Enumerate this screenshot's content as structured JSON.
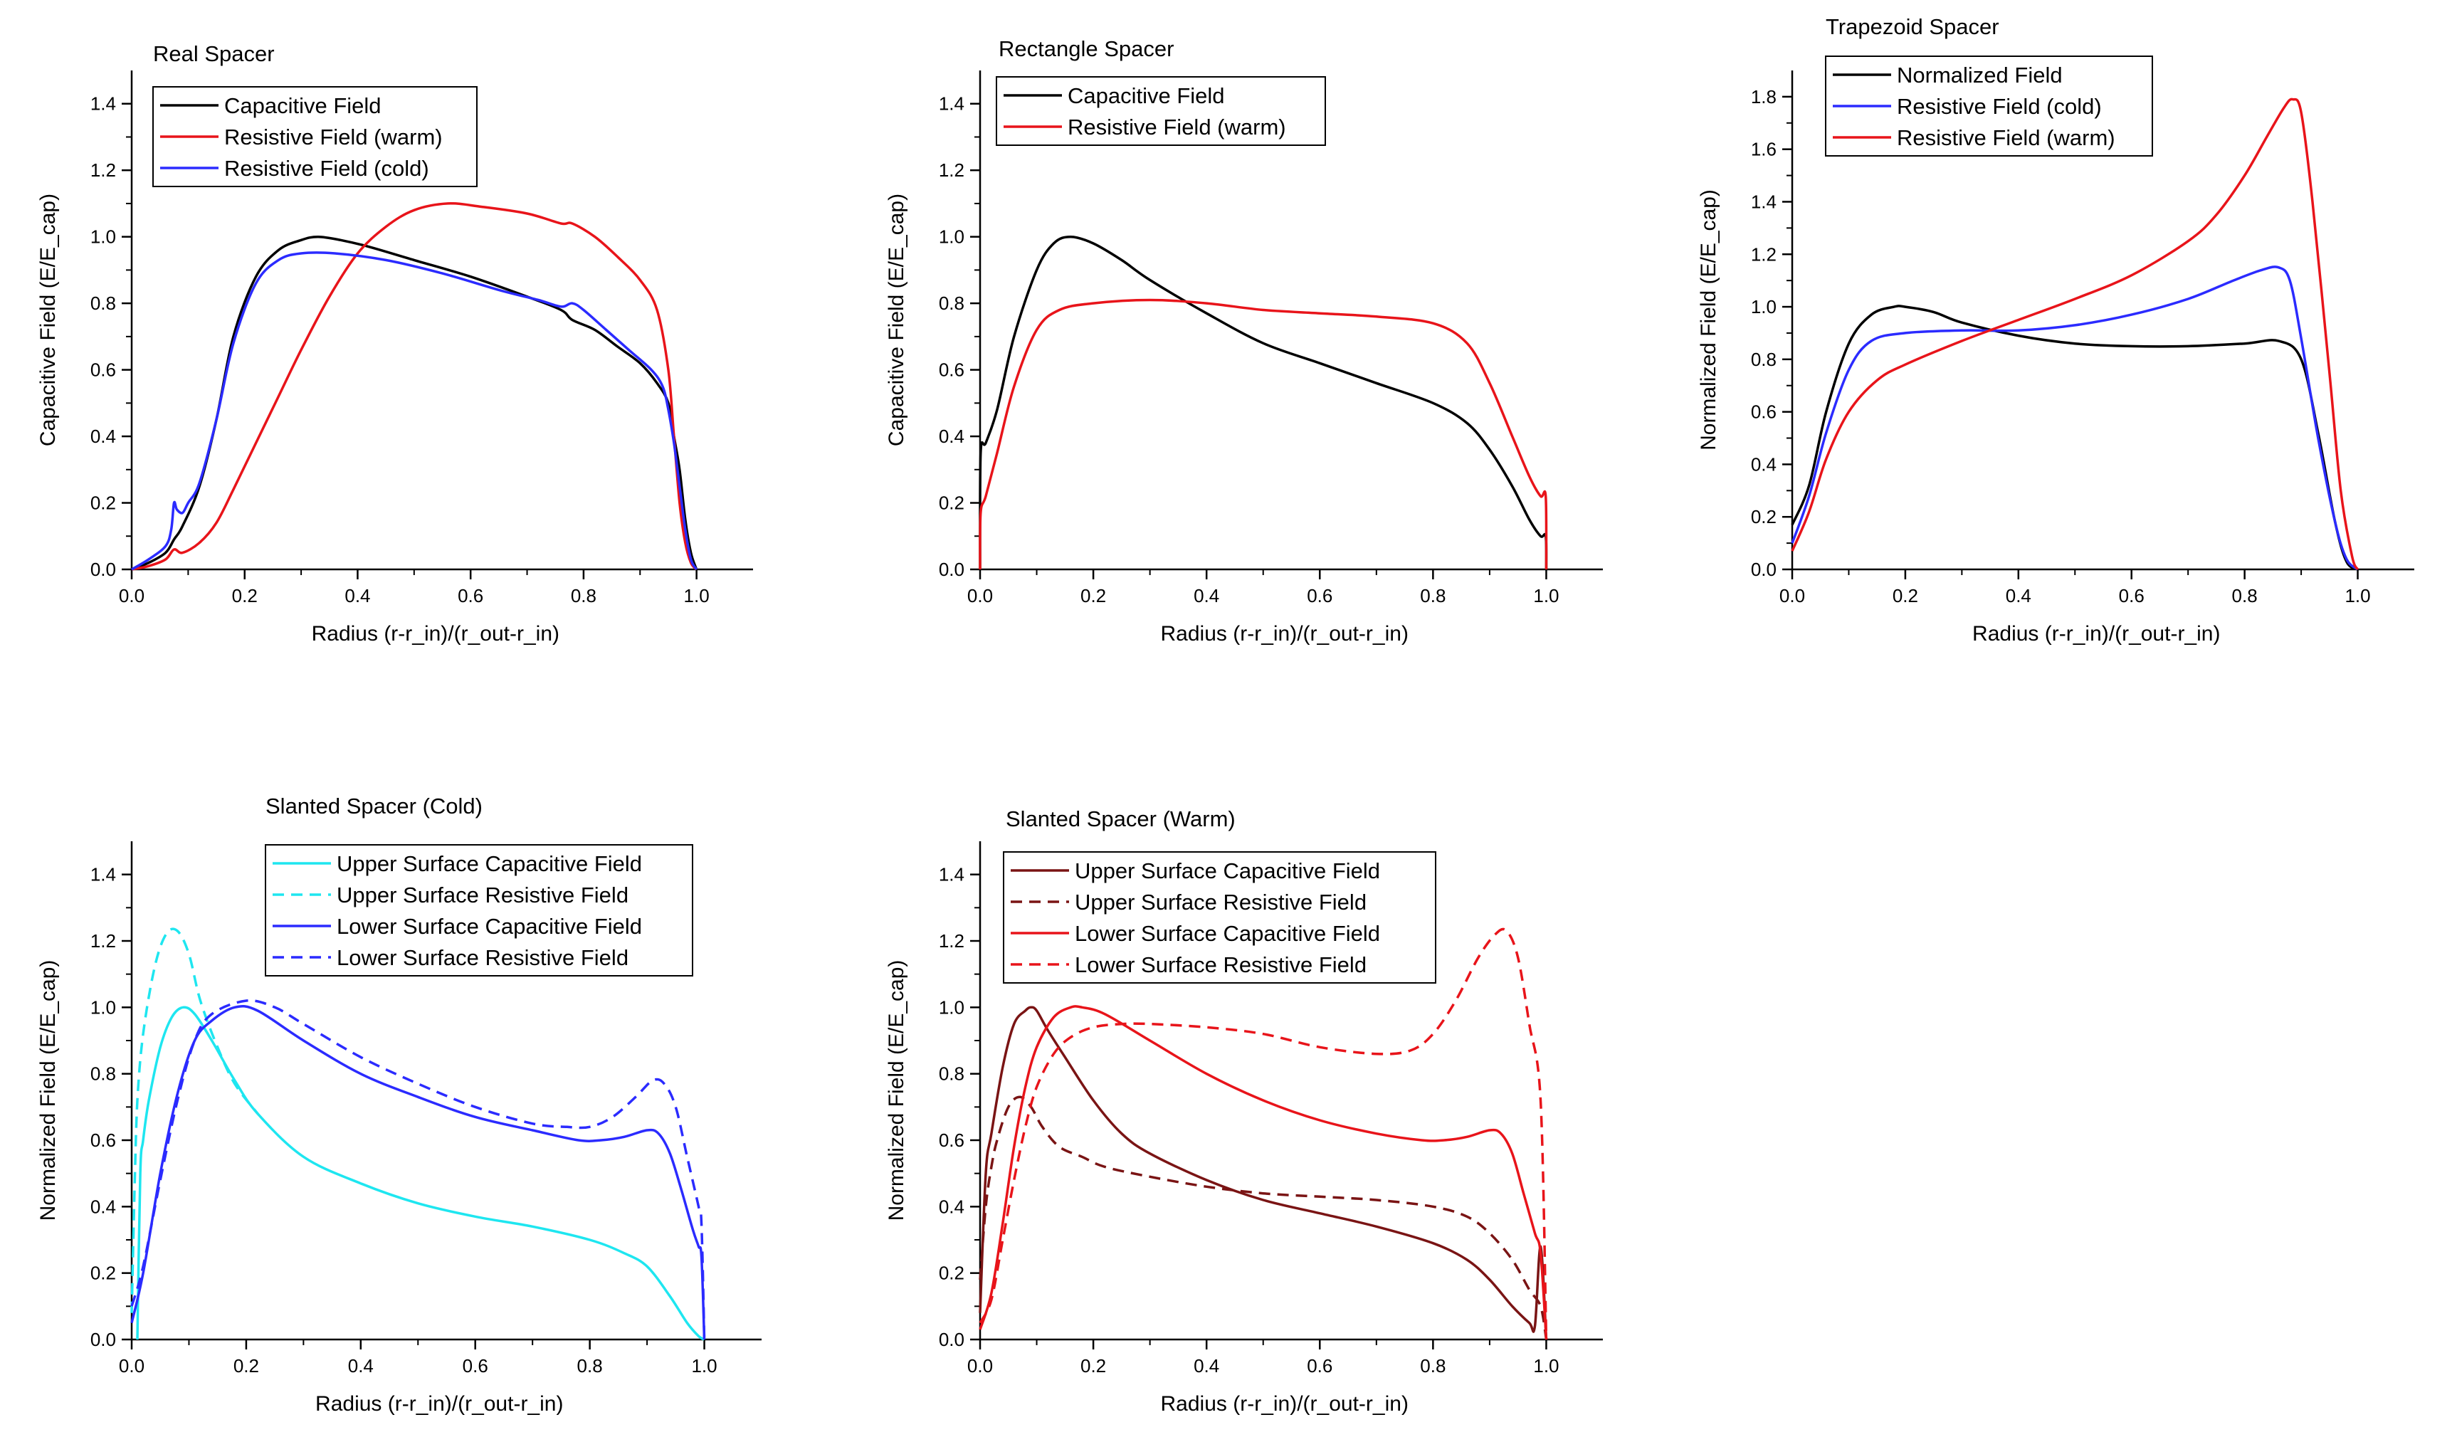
{
  "chart_data": [
    {
      "type": "line",
      "title": "Real Spacer",
      "xlabel": "Radius (r-r_in)/(r_out-r_in)",
      "ylabel": "Capacitive Field (E/E_cap)",
      "xlim": [
        0,
        1.1
      ],
      "ylim": [
        0,
        1.5
      ],
      "xticks": [
        "0.0",
        "0.2",
        "0.4",
        "0.6",
        "0.8",
        "1.0"
      ],
      "yticks": [
        "0.0",
        "0.2",
        "0.4",
        "0.6",
        "0.8",
        "1.0",
        "1.2",
        "1.4"
      ],
      "grid": false,
      "legend_position": "top-left",
      "series": [
        {
          "name": "Capacitive Field",
          "color": "#000000",
          "dash": "solid",
          "x": [
            0,
            0.03,
            0.06,
            0.075,
            0.09,
            0.12,
            0.15,
            0.18,
            0.22,
            0.26,
            0.3,
            0.33,
            0.37,
            0.42,
            0.5,
            0.6,
            0.7,
            0.76,
            0.78,
            0.82,
            0.86,
            0.9,
            0.93,
            0.95,
            0.96,
            0.97,
            0.98,
            0.99,
            1.0
          ],
          "y": [
            0,
            0.02,
            0.05,
            0.09,
            0.13,
            0.25,
            0.45,
            0.7,
            0.88,
            0.96,
            0.99,
            1.0,
            0.99,
            0.97,
            0.93,
            0.88,
            0.82,
            0.78,
            0.75,
            0.72,
            0.67,
            0.62,
            0.56,
            0.5,
            0.4,
            0.3,
            0.15,
            0.05,
            0
          ]
        },
        {
          "name": "Resistive Field (warm)",
          "color": "#e8141a",
          "dash": "solid",
          "x": [
            0,
            0.03,
            0.06,
            0.075,
            0.09,
            0.12,
            0.15,
            0.18,
            0.22,
            0.26,
            0.3,
            0.35,
            0.4,
            0.45,
            0.5,
            0.56,
            0.62,
            0.7,
            0.76,
            0.78,
            0.82,
            0.86,
            0.9,
            0.93,
            0.95,
            0.96,
            0.97,
            0.98,
            0.99,
            1.0
          ],
          "y": [
            0,
            0.01,
            0.03,
            0.06,
            0.05,
            0.08,
            0.14,
            0.24,
            0.38,
            0.52,
            0.66,
            0.82,
            0.95,
            1.03,
            1.08,
            1.1,
            1.09,
            1.07,
            1.04,
            1.04,
            1.0,
            0.94,
            0.87,
            0.78,
            0.6,
            0.4,
            0.2,
            0.08,
            0.02,
            0
          ]
        },
        {
          "name": "Resistive Field (cold)",
          "color": "#2b2bff",
          "dash": "solid",
          "x": [
            0,
            0.03,
            0.06,
            0.07,
            0.075,
            0.08,
            0.09,
            0.1,
            0.12,
            0.15,
            0.18,
            0.22,
            0.26,
            0.3,
            0.36,
            0.45,
            0.55,
            0.65,
            0.72,
            0.76,
            0.78,
            0.8,
            0.84,
            0.88,
            0.92,
            0.94,
            0.95,
            0.96,
            0.97,
            0.98,
            0.99,
            1.0
          ],
          "y": [
            0,
            0.03,
            0.07,
            0.12,
            0.2,
            0.18,
            0.17,
            0.2,
            0.26,
            0.45,
            0.68,
            0.86,
            0.93,
            0.95,
            0.95,
            0.93,
            0.89,
            0.84,
            0.81,
            0.79,
            0.8,
            0.78,
            0.72,
            0.66,
            0.6,
            0.55,
            0.48,
            0.38,
            0.25,
            0.12,
            0.03,
            0
          ]
        }
      ]
    },
    {
      "type": "line",
      "title": "Rectangle Spacer",
      "xlabel": "Radius (r-r_in)/(r_out-r_in)",
      "ylabel": "Capacitive Field (E/E_cap)",
      "xlim": [
        0,
        1.1
      ],
      "ylim": [
        0,
        1.5
      ],
      "xticks": [
        "0.0",
        "0.2",
        "0.4",
        "0.6",
        "0.8",
        "1.0"
      ],
      "yticks": [
        "0.0",
        "0.2",
        "0.4",
        "0.6",
        "0.8",
        "1.0",
        "1.2",
        "1.4"
      ],
      "grid": false,
      "legend_position": "top-left",
      "series": [
        {
          "name": "Capacitive Field",
          "color": "#000000",
          "dash": "solid",
          "x": [
            0,
            0.001,
            0.01,
            0.03,
            0.06,
            0.1,
            0.13,
            0.16,
            0.2,
            0.25,
            0.3,
            0.4,
            0.5,
            0.6,
            0.7,
            0.8,
            0.86,
            0.9,
            0.94,
            0.97,
            0.99,
            0.999,
            1.0
          ],
          "y": [
            0,
            0.35,
            0.38,
            0.48,
            0.7,
            0.9,
            0.98,
            1.0,
            0.98,
            0.93,
            0.87,
            0.77,
            0.68,
            0.62,
            0.56,
            0.5,
            0.44,
            0.36,
            0.25,
            0.15,
            0.1,
            0.1,
            0
          ]
        },
        {
          "name": "Resistive Field (warm)",
          "color": "#e8141a",
          "dash": "solid",
          "x": [
            0,
            0.001,
            0.01,
            0.03,
            0.06,
            0.1,
            0.14,
            0.2,
            0.3,
            0.4,
            0.5,
            0.6,
            0.7,
            0.8,
            0.86,
            0.9,
            0.94,
            0.97,
            0.99,
            0.999,
            1.0
          ],
          "y": [
            0,
            0.17,
            0.22,
            0.35,
            0.55,
            0.72,
            0.78,
            0.8,
            0.81,
            0.8,
            0.78,
            0.77,
            0.76,
            0.74,
            0.68,
            0.56,
            0.4,
            0.28,
            0.22,
            0.22,
            0
          ]
        }
      ]
    },
    {
      "type": "line",
      "title": "Trapezoid Spacer",
      "xlabel": "Radius (r-r_in)/(r_out-r_in)",
      "ylabel": "Normalized Field (E/E_cap)",
      "xlim": [
        0,
        1.1
      ],
      "ylim": [
        0,
        1.9
      ],
      "xticks": [
        "0.0",
        "0.2",
        "0.4",
        "0.6",
        "0.8",
        "1.0"
      ],
      "yticks": [
        "0.0",
        "0.2",
        "0.4",
        "0.6",
        "0.8",
        "1.0",
        "1.2",
        "1.4",
        "1.6",
        "1.8"
      ],
      "grid": false,
      "legend_position": "top-left",
      "series": [
        {
          "name": "Normalized Field",
          "color": "#000000",
          "dash": "solid",
          "x": [
            0,
            0.03,
            0.06,
            0.1,
            0.14,
            0.18,
            0.2,
            0.25,
            0.3,
            0.4,
            0.5,
            0.6,
            0.7,
            0.8,
            0.86,
            0.9,
            0.93,
            0.96,
            0.98,
            1.0
          ],
          "y": [
            0.17,
            0.32,
            0.6,
            0.86,
            0.97,
            1.0,
            1.0,
            0.98,
            0.94,
            0.89,
            0.86,
            0.85,
            0.85,
            0.86,
            0.87,
            0.8,
            0.52,
            0.18,
            0.03,
            0
          ]
        },
        {
          "name": "Resistive Field (cold)",
          "color": "#2b2bff",
          "dash": "solid",
          "x": [
            0,
            0.03,
            0.06,
            0.1,
            0.14,
            0.2,
            0.3,
            0.4,
            0.5,
            0.6,
            0.7,
            0.78,
            0.83,
            0.86,
            0.88,
            0.9,
            0.93,
            0.96,
            0.98,
            1.0
          ],
          "y": [
            0.1,
            0.28,
            0.52,
            0.76,
            0.87,
            0.9,
            0.91,
            0.91,
            0.93,
            0.97,
            1.03,
            1.1,
            1.14,
            1.15,
            1.1,
            0.88,
            0.5,
            0.18,
            0.04,
            0
          ]
        },
        {
          "name": "Resistive Field (warm)",
          "color": "#e8141a",
          "dash": "solid",
          "x": [
            0,
            0.03,
            0.06,
            0.1,
            0.15,
            0.2,
            0.3,
            0.4,
            0.5,
            0.6,
            0.7,
            0.75,
            0.8,
            0.84,
            0.87,
            0.885,
            0.9,
            0.92,
            0.95,
            0.97,
            0.99,
            1.0
          ],
          "y": [
            0.07,
            0.22,
            0.42,
            0.6,
            0.72,
            0.78,
            0.87,
            0.95,
            1.03,
            1.12,
            1.25,
            1.35,
            1.5,
            1.65,
            1.76,
            1.79,
            1.74,
            1.4,
            0.75,
            0.3,
            0.05,
            0
          ]
        }
      ]
    },
    {
      "type": "line",
      "title": "Slanted Spacer (Cold)",
      "xlabel": "Radius (r-r_in)/(r_out-r_in)",
      "ylabel": "Normalized Field (E/E_cap)",
      "xlim": [
        0,
        1.1
      ],
      "ylim": [
        0,
        1.5
      ],
      "xticks": [
        "0.0",
        "0.2",
        "0.4",
        "0.6",
        "0.8",
        "1.0"
      ],
      "yticks": [
        "0.0",
        "0.2",
        "0.4",
        "0.6",
        "0.8",
        "1.0",
        "1.2",
        "1.4"
      ],
      "grid": false,
      "legend_position": "top-right",
      "series": [
        {
          "name": "Upper Surface Capacitive Field",
          "color": "#1ee6f0",
          "dash": "solid",
          "x": [
            0.01,
            0.015,
            0.02,
            0.03,
            0.05,
            0.07,
            0.09,
            0.11,
            0.14,
            0.18,
            0.22,
            0.3,
            0.4,
            0.5,
            0.6,
            0.7,
            0.8,
            0.86,
            0.9,
            0.94,
            0.97,
            0.99,
            1.0
          ],
          "y": [
            0,
            0.5,
            0.6,
            0.72,
            0.88,
            0.97,
            1.0,
            0.98,
            0.9,
            0.78,
            0.68,
            0.55,
            0.47,
            0.41,
            0.37,
            0.34,
            0.3,
            0.26,
            0.22,
            0.13,
            0.05,
            0.01,
            0
          ]
        },
        {
          "name": "Upper Surface Resistive Field",
          "color": "#1ee6f0",
          "dash": "dashed",
          "x": [
            0,
            0.005,
            0.01,
            0.02,
            0.04,
            0.06,
            0.08,
            0.1,
            0.12,
            0.15,
            0.18,
            0.22
          ],
          "y": [
            0.08,
            0.45,
            0.72,
            0.92,
            1.12,
            1.22,
            1.23,
            1.16,
            1.02,
            0.88,
            0.77,
            0.68
          ]
        },
        {
          "name": "Lower Surface Capacitive Field",
          "color": "#2b2bff",
          "dash": "solid",
          "x": [
            0,
            0.02,
            0.05,
            0.08,
            0.11,
            0.14,
            0.18,
            0.22,
            0.3,
            0.4,
            0.5,
            0.6,
            0.7,
            0.78,
            0.82,
            0.86,
            0.9,
            0.92,
            0.94,
            0.96,
            0.98,
            0.99,
            0.995,
            1.0
          ],
          "y": [
            0.05,
            0.2,
            0.5,
            0.74,
            0.9,
            0.96,
            1.0,
            0.99,
            0.9,
            0.8,
            0.73,
            0.67,
            0.63,
            0.6,
            0.6,
            0.61,
            0.63,
            0.62,
            0.56,
            0.45,
            0.33,
            0.28,
            0.25,
            0
          ]
        },
        {
          "name": "Lower Surface Resistive Field",
          "color": "#2b2bff",
          "dash": "dashed",
          "x": [
            0,
            0.02,
            0.05,
            0.08,
            0.11,
            0.14,
            0.2,
            0.25,
            0.3,
            0.4,
            0.5,
            0.6,
            0.7,
            0.76,
            0.8,
            0.84,
            0.88,
            0.91,
            0.93,
            0.95,
            0.97,
            0.99,
            0.995,
            1.0
          ],
          "y": [
            0.1,
            0.22,
            0.48,
            0.72,
            0.9,
            0.98,
            1.02,
            1.0,
            0.95,
            0.85,
            0.77,
            0.7,
            0.65,
            0.64,
            0.64,
            0.67,
            0.73,
            0.78,
            0.77,
            0.7,
            0.55,
            0.4,
            0.35,
            0
          ]
        }
      ]
    },
    {
      "type": "line",
      "title": "Slanted Spacer (Warm)",
      "xlabel": "Radius (r-r_in)/(r_out-r_in)",
      "ylabel": "Normalized Field (E/E_cap)",
      "xlim": [
        0,
        1.1
      ],
      "ylim": [
        0,
        1.5
      ],
      "xticks": [
        "0.0",
        "0.2",
        "0.4",
        "0.6",
        "0.8",
        "1.0"
      ],
      "yticks": [
        "0.0",
        "0.2",
        "0.4",
        "0.6",
        "0.8",
        "1.0",
        "1.2",
        "1.4"
      ],
      "grid": false,
      "legend_position": "top-left",
      "series": [
        {
          "name": "Upper Surface Capacitive Field",
          "color": "#7a1414",
          "dash": "solid",
          "x": [
            0,
            0.01,
            0.02,
            0.04,
            0.06,
            0.08,
            0.09,
            0.1,
            0.12,
            0.15,
            0.2,
            0.25,
            0.3,
            0.4,
            0.5,
            0.6,
            0.7,
            0.8,
            0.86,
            0.9,
            0.94,
            0.97,
            0.98,
            0.99,
            1.0
          ],
          "y": [
            0.08,
            0.5,
            0.62,
            0.82,
            0.95,
            0.99,
            1.0,
            0.99,
            0.93,
            0.85,
            0.72,
            0.62,
            0.56,
            0.48,
            0.42,
            0.38,
            0.34,
            0.29,
            0.24,
            0.18,
            0.1,
            0.05,
            0.04,
            0.28,
            0
          ]
        },
        {
          "name": "Upper Surface Resistive Field",
          "color": "#7a1414",
          "dash": "dashed",
          "x": [
            0,
            0.01,
            0.02,
            0.03,
            0.05,
            0.07,
            0.09,
            0.11,
            0.14,
            0.18,
            0.22,
            0.3,
            0.4,
            0.5,
            0.6,
            0.7,
            0.8,
            0.86,
            0.9,
            0.94,
            0.97,
            0.99,
            1.0
          ],
          "y": [
            0.18,
            0.4,
            0.52,
            0.6,
            0.7,
            0.73,
            0.7,
            0.64,
            0.58,
            0.55,
            0.52,
            0.49,
            0.46,
            0.44,
            0.43,
            0.42,
            0.4,
            0.37,
            0.32,
            0.24,
            0.15,
            0.1,
            0
          ]
        },
        {
          "name": "Lower Surface Capacitive Field",
          "color": "#e8141a",
          "dash": "solid",
          "x": [
            0,
            0.02,
            0.04,
            0.06,
            0.08,
            0.1,
            0.13,
            0.16,
            0.18,
            0.22,
            0.3,
            0.4,
            0.5,
            0.6,
            0.7,
            0.78,
            0.82,
            0.86,
            0.9,
            0.92,
            0.94,
            0.96,
            0.98,
            0.99,
            1.0
          ],
          "y": [
            0.03,
            0.14,
            0.35,
            0.58,
            0.76,
            0.88,
            0.97,
            1.0,
            1.0,
            0.98,
            0.9,
            0.8,
            0.72,
            0.66,
            0.62,
            0.6,
            0.6,
            0.61,
            0.63,
            0.62,
            0.56,
            0.44,
            0.32,
            0.26,
            0
          ]
        },
        {
          "name": "Lower Surface Resistive Field",
          "color": "#e8141a",
          "dash": "dashed",
          "x": [
            0,
            0.02,
            0.04,
            0.06,
            0.08,
            0.1,
            0.13,
            0.16,
            0.2,
            0.25,
            0.3,
            0.4,
            0.5,
            0.6,
            0.7,
            0.76,
            0.8,
            0.84,
            0.88,
            0.91,
            0.93,
            0.95,
            0.97,
            0.99,
            1.0
          ],
          "y": [
            0.05,
            0.12,
            0.3,
            0.48,
            0.64,
            0.76,
            0.86,
            0.91,
            0.94,
            0.95,
            0.95,
            0.94,
            0.92,
            0.88,
            0.86,
            0.87,
            0.92,
            1.02,
            1.15,
            1.22,
            1.23,
            1.15,
            0.95,
            0.72,
            0
          ]
        }
      ]
    }
  ]
}
